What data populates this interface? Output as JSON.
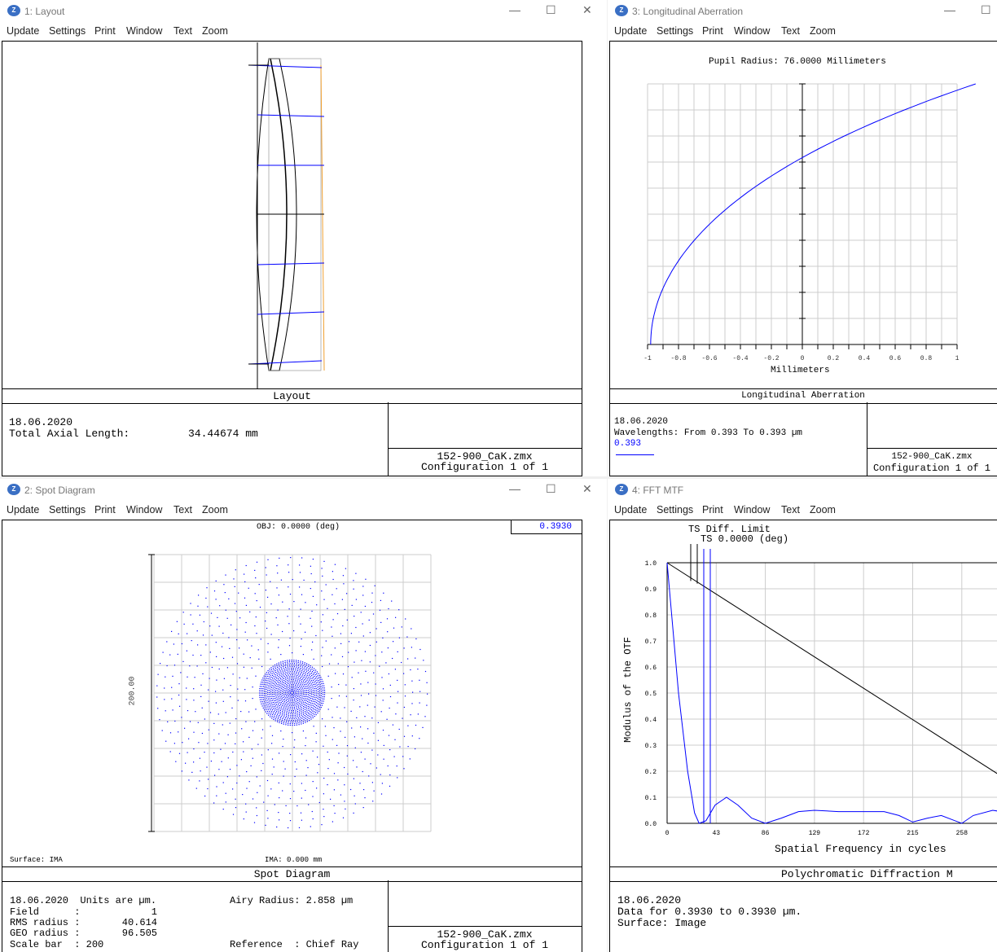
{
  "menu": [
    "Update",
    "Settings",
    "Print",
    "Window",
    "Text",
    "Zoom"
  ],
  "windows": {
    "layout": {
      "title": "1: Layout",
      "caption": "Layout",
      "date": "18.06.2020",
      "total_axial_label": "Total Axial Length:",
      "total_axial_value": "34.44674 mm",
      "file": "152-900_CaK.zmx",
      "config": "Configuration 1 of 1"
    },
    "longitudinal": {
      "title": "3: Longitudinal Aberration",
      "pupil": "Pupil Radius: 76.0000 Millimeters",
      "xlabel": "Millimeters",
      "xticks": [
        "-1",
        "-0.8",
        "-0.6",
        "-0.4",
        "-0.2",
        "0",
        "0.2",
        "0.4",
        "0.6",
        "0.8",
        "1"
      ],
      "caption": "Longitudinal Aberration",
      "date": "18.06.2020",
      "wavelengths": "Wavelengths: From 0.393 To 0.393 µm",
      "wave_legend": "0.393",
      "file": "152-900_CaK.zmx",
      "config": "Configuration 1 of 1",
      "curve_color": "#0000ff"
    },
    "spot": {
      "title": "2: Spot Diagram",
      "obj": "OBJ: 0.0000 (deg)",
      "wave": "0.3930",
      "scale_label": "200.00",
      "surface": "Surface: IMA",
      "ima": "IMA: 0.000 mm",
      "caption": "Spot Diagram",
      "line1": "18.06.2020  Units are µm.",
      "airy": "Airy Radius: 2.858 µm",
      "field_label": "Field      :",
      "field_value": "1",
      "rms_label": "RMS radius :",
      "rms_value": "40.614",
      "geo_label": "GEO radius :",
      "geo_value": "96.505",
      "scalebar": "Scale bar  : 200",
      "reference": "Reference  : Chief Ray",
      "file": "152-900_CaK.zmx",
      "config": "Configuration 1 of 1"
    },
    "mtf": {
      "title": "4: FFT MTF",
      "legend1": "TS Diff. Limit",
      "legend2": "TS 0.0000 (deg)",
      "ylabel": "Modulus of the OTF",
      "xlabel": "Spatial Frequency in cycles",
      "yticks": [
        "0.0",
        "0.1",
        "0.2",
        "0.3",
        "0.4",
        "0.5",
        "0.6",
        "0.7",
        "0.8",
        "0.9",
        "1.0"
      ],
      "xticks": [
        "0",
        "43",
        "86",
        "129",
        "172",
        "215",
        "258"
      ],
      "caption": "Polychromatic Diffraction M",
      "date": "18.06.2020",
      "data": "Data for 0.3930 to 0.3930 µm.",
      "surface": "Surface: Image"
    }
  }
}
